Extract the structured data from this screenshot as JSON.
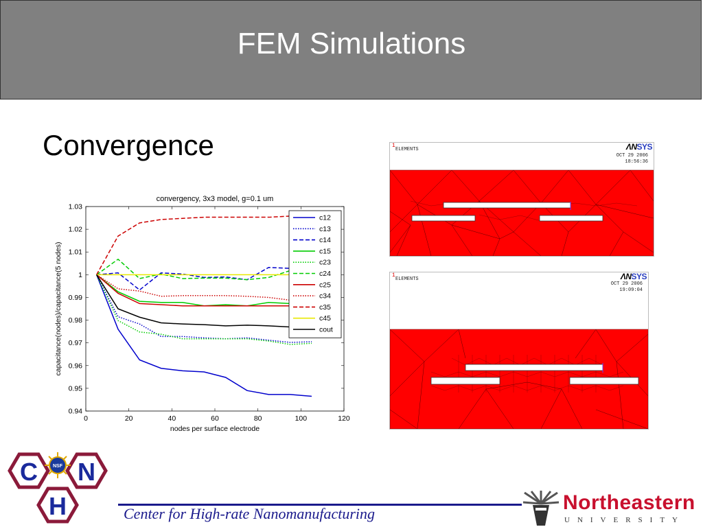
{
  "header": {
    "title": "FEM Simulations"
  },
  "subtitle": "Convergence",
  "chart_data": {
    "type": "line",
    "title": "convergency, 3x3 model, g=0.1 um",
    "xlabel": "nodes per surface electrode",
    "ylabel": "capacitance(nodes)/capacitance(5 nodes)",
    "xlim": [
      0,
      120
    ],
    "ylim": [
      0.94,
      1.03
    ],
    "xticks": [
      0,
      20,
      40,
      60,
      80,
      100,
      120
    ],
    "yticks": [
      0.94,
      0.95,
      0.96,
      0.97,
      0.98,
      0.99,
      1,
      1.01,
      1.02,
      1.03
    ],
    "grid": false,
    "legend_position": "top-right",
    "x": [
      5,
      15,
      25,
      35,
      45,
      55,
      65,
      75,
      85,
      95,
      105
    ],
    "series": [
      {
        "name": "c12",
        "color": "#0000cc",
        "dash": "solid",
        "values": [
          1,
          0.976,
          0.9625,
          0.9588,
          0.9577,
          0.9572,
          0.9548,
          0.949,
          0.9473,
          0.9473,
          0.9465
        ]
      },
      {
        "name": "c13",
        "color": "#0000cc",
        "dash": "dotted",
        "values": [
          1,
          0.9815,
          0.9783,
          0.9728,
          0.9728,
          0.9722,
          0.9718,
          0.9722,
          0.9712,
          0.9702,
          0.9705
        ]
      },
      {
        "name": "c14",
        "color": "#0000cc",
        "dash": "dashed",
        "values": [
          1,
          1.0008,
          0.9933,
          1.0008,
          1.0003,
          0.9988,
          0.999,
          0.9978,
          1.0032,
          1.0028,
          1.0022
        ]
      },
      {
        "name": "c15",
        "color": "#00cc00",
        "dash": "solid",
        "values": [
          1,
          0.9925,
          0.9883,
          0.9878,
          0.9878,
          0.9863,
          0.9868,
          0.9863,
          0.9878,
          0.9873,
          0.9873
        ]
      },
      {
        "name": "c23",
        "color": "#00cc00",
        "dash": "dotted",
        "values": [
          1,
          0.9798,
          0.9748,
          0.9738,
          0.9718,
          0.9718,
          0.9718,
          0.9718,
          0.9708,
          0.9693,
          0.9698
        ]
      },
      {
        "name": "c24",
        "color": "#00cc00",
        "dash": "dashed",
        "values": [
          1,
          1.0068,
          0.9983,
          1.0003,
          0.9983,
          0.9985,
          0.9985,
          0.9978,
          0.9988,
          1.0018,
          1.0018
        ]
      },
      {
        "name": "c25",
        "color": "#cc0000",
        "dash": "solid",
        "values": [
          1,
          0.9918,
          0.9873,
          0.9868,
          0.9863,
          0.9863,
          0.9863,
          0.9863,
          0.9863,
          0.9863,
          0.9863
        ]
      },
      {
        "name": "c34",
        "color": "#cc0000",
        "dash": "dotted",
        "values": [
          1,
          0.9938,
          0.9928,
          0.9905,
          0.9908,
          0.9908,
          0.9908,
          0.9905,
          0.99,
          0.9888,
          0.9883
        ]
      },
      {
        "name": "c35",
        "color": "#cc0000",
        "dash": "dashed",
        "values": [
          1,
          1.017,
          1.0228,
          1.0243,
          1.0248,
          1.0253,
          1.0253,
          1.0253,
          1.0253,
          1.0258,
          1.0258
        ]
      },
      {
        "name": "c45",
        "color": "#e8e800",
        "dash": "solid",
        "values": [
          1,
          1,
          1,
          1,
          1,
          1,
          1,
          1,
          1,
          1,
          1
        ]
      },
      {
        "name": "cout",
        "color": "#000000",
        "dash": "solid",
        "values": [
          1,
          0.985,
          0.9813,
          0.9788,
          0.9783,
          0.978,
          0.9775,
          0.9778,
          0.9775,
          0.977,
          0.9768
        ]
      }
    ]
  },
  "ansys_panels": [
    {
      "number": "1",
      "label": "ELEMENTS",
      "logo_an": "ΛN",
      "logo_sys": "SYS",
      "date": "OCT 29 2006",
      "time": "18:56:36"
    },
    {
      "number": "1",
      "label": "ELEMENTS",
      "logo_an": "ΛN",
      "logo_sys": "SYS",
      "date": "OCT 29 2006",
      "time": "19:09:04"
    }
  ],
  "logos": {
    "chn": {
      "letters": [
        "C",
        "H",
        "N"
      ],
      "badge": "NSF"
    },
    "university_name": "Northeastern",
    "university_sub": "UNIVERSITY"
  },
  "footer": {
    "text": "Center for High-rate Nanomanufacturing"
  },
  "colors": {
    "header_bg": "#808080",
    "mesh_red": "#ff0000",
    "footer_blue": "#1a1a8c",
    "neu_red": "#c8102e",
    "chn_hex": "#8b1a3a"
  }
}
